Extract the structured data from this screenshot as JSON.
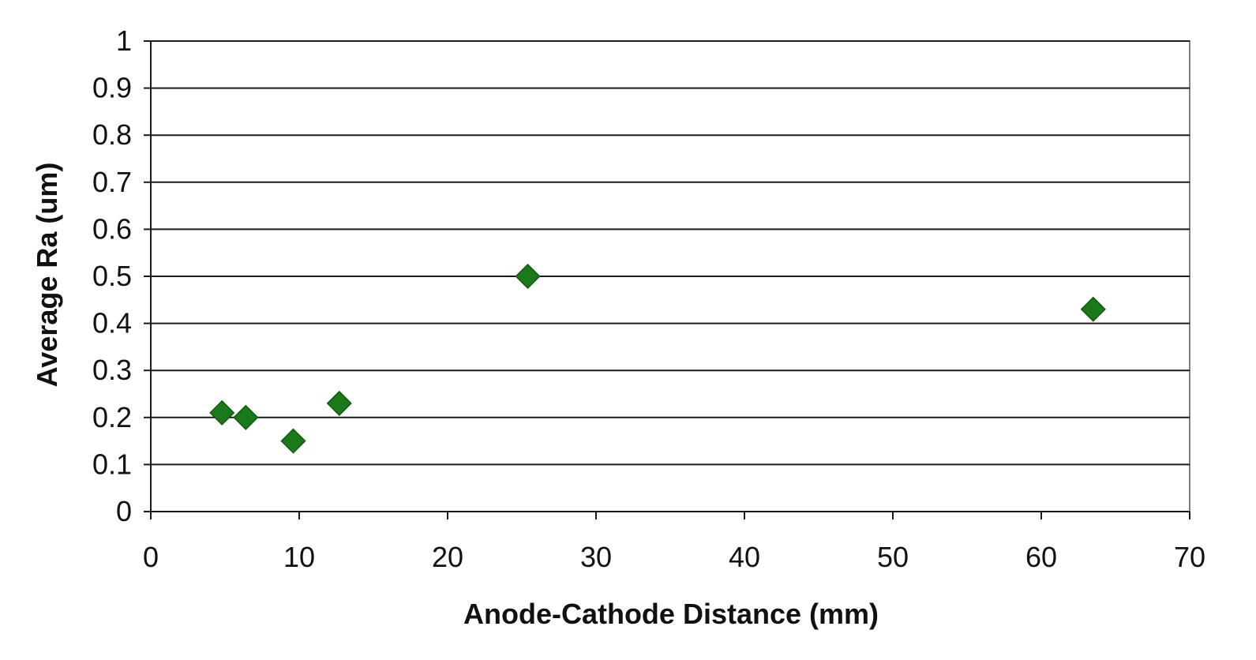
{
  "chart_data": {
    "type": "scatter",
    "title": "",
    "xlabel": "Anode-Cathode Distance (mm)",
    "ylabel": "Average Ra (um)",
    "xlim": [
      0,
      70
    ],
    "ylim": [
      0,
      1
    ],
    "x_ticks": [
      "0",
      "10",
      "20",
      "30",
      "40",
      "50",
      "60",
      "70"
    ],
    "y_ticks": [
      "0",
      "0.1",
      "0.2",
      "0.3",
      "0.4",
      "0.5",
      "0.6",
      "0.7",
      "0.8",
      "0.9",
      "1"
    ],
    "grid": "horizontal",
    "legend": "none",
    "series": [
      {
        "marker": "diamond",
        "color": "#1a7a1a",
        "x": [
          4.8,
          6.4,
          9.6,
          12.7,
          25.4,
          63.5
        ],
        "y": [
          0.21,
          0.2,
          0.15,
          0.23,
          0.5,
          0.43
        ]
      }
    ]
  }
}
